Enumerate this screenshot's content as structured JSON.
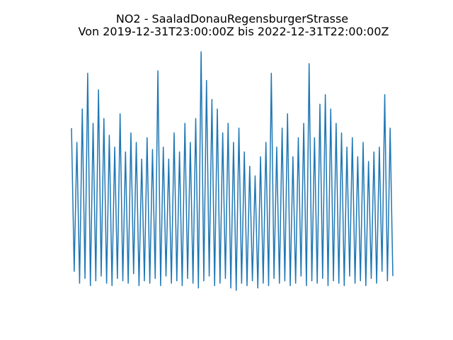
{
  "chart_data": {
    "type": "line",
    "title": "NO2 - SaaladDonauRegensburgerStrasse",
    "subtitle": "Von 2019-12-31T23:00:00Z bis 2022-12-31T22:00:00Z",
    "axis": false,
    "ylim": [
      0,
      100
    ],
    "series": [
      {
        "color": "#1f77b4",
        "values": [
          68,
          8,
          62,
          3,
          76,
          5,
          91,
          2,
          70,
          4,
          84,
          6,
          72,
          3,
          65,
          2,
          60,
          5,
          74,
          4,
          58,
          3,
          66,
          7,
          62,
          2,
          55,
          4,
          64,
          3,
          59,
          5,
          92,
          2,
          60,
          6,
          55,
          3,
          66,
          4,
          58,
          2,
          70,
          5,
          62,
          3,
          72,
          1,
          100,
          4,
          88,
          6,
          80,
          2,
          76,
          3,
          66,
          5,
          70,
          1,
          62,
          0,
          68,
          3,
          58,
          2,
          52,
          4,
          48,
          1,
          56,
          3,
          62,
          2,
          91,
          5,
          60,
          3,
          68,
          4,
          74,
          2,
          56,
          3,
          64,
          6,
          70,
          2,
          95,
          4,
          64,
          3,
          78,
          5,
          82,
          2,
          76,
          4,
          70,
          3,
          66,
          2,
          60,
          6,
          64,
          3,
          56,
          4,
          62,
          2,
          54,
          5,
          58,
          3,
          60,
          8,
          82,
          4,
          68,
          6
        ]
      }
    ]
  }
}
